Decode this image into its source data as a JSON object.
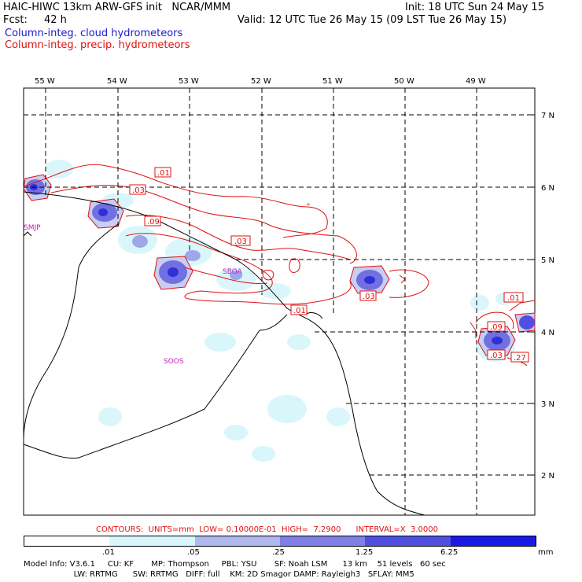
{
  "header": {
    "title": "HAIC-HIWC 13km ARW-GFS init   NCAR/MMM",
    "init": "Init: 18 UTC Sun 24 May 15",
    "fcst_label": "Fcst:",
    "fcst_value": "42 h",
    "valid": "Valid: 12 UTC Tue 26 May 15 (09 LST Tue 26 May 15)",
    "field_cloud": "Column-integ. cloud hydrometeors",
    "field_precip": "Column-integ. precip. hydrometeors"
  },
  "map": {
    "lon_labels": [
      "55 W",
      "54 W",
      "53 W",
      "52 W",
      "51 W",
      "50 W",
      "49 W"
    ],
    "lat_labels": [
      "7 N",
      "6 N",
      "5 N",
      "4 N",
      "3 N",
      "2 N"
    ],
    "stations": [
      "SMJP",
      "SBOA",
      "SOOS"
    ],
    "contour_labels": [
      ".01",
      ".03",
      ".09",
      ".03",
      ".01",
      ".03",
      ".01",
      ".09",
      ".03",
      ".27"
    ]
  },
  "contours_info": "CONTOURS:  UNITS=mm  LOW= 0.10000E-01  HIGH=  7.2900      INTERVAL=X  3.0000",
  "colorbar": {
    "ticks": [
      ".01",
      ".05",
      ".25",
      "1.25",
      "6.25"
    ],
    "unit": "mm",
    "colors": [
      "#ffffff",
      "#d9f7fb",
      "#b0b8ee",
      "#8080e6",
      "#5050e0",
      "#1a1ae8"
    ]
  },
  "model_info": {
    "line1": "Model Info: V3.6.1     CU: KF       MP: Thompson     PBL: YSU       SF: Noah LSM      13 km    51 levels   60 sec",
    "line2": "                    LW: RRTMG      SW: RRTMG   DIFF: full    KM: 2D Smagor DAMP: Rayleigh3   SFLAY: MM5"
  }
}
